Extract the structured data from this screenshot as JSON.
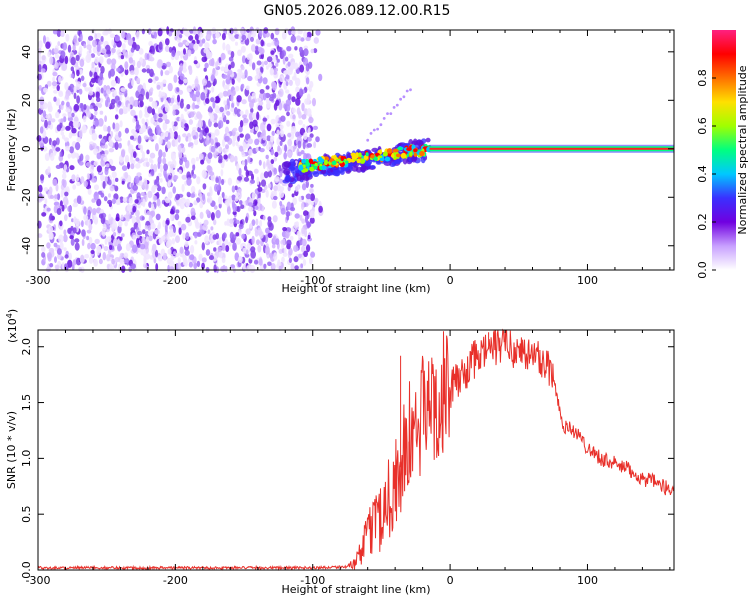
{
  "title": "GN05.2026.089.12.00.R15",
  "chart_data": [
    {
      "type": "heatmap",
      "name": "spectrogram",
      "xlabel": "Height of straight line (km)",
      "ylabel": "Frequency (Hz)",
      "xlim": [
        -300,
        163
      ],
      "ylim": [
        -50,
        49
      ],
      "x_ticks": [
        -300,
        -200,
        -100,
        0,
        100
      ],
      "y_ticks": [
        -40,
        -20,
        0,
        20,
        40
      ],
      "description_regions": {
        "noise_band_km": [
          -300,
          -100
        ],
        "transition_km": [
          -120,
          -15
        ],
        "stable_line_km": [
          -15,
          163
        ],
        "stable_line_freq_hz": 0
      },
      "colorbar": {
        "label": "Normalized spectral amplitude",
        "range": [
          0.0,
          1.0
        ],
        "ticks": [
          0.0,
          0.2,
          0.4,
          0.6,
          0.8
        ],
        "tick_labels": [
          "0.0",
          "0.2",
          "0.4",
          "0.6",
          "0.8"
        ],
        "colors": [
          "#ffffff",
          "#c8a0ff",
          "#7000e0",
          "#3a30ff",
          "#00c8ff",
          "#00ff80",
          "#a0ff00",
          "#ffe000",
          "#ff7000",
          "#ff0000",
          "#ff2080"
        ]
      }
    },
    {
      "type": "line",
      "name": "snr",
      "xlabel": "Height of straight line (km)",
      "ylabel": "SNR (10 * v/v)",
      "ylabel_scale": "(x10",
      "ylabel_scale_exp": "4",
      "ylabel_scale_close": ")",
      "xlim": [
        -300,
        163
      ],
      "ylim": [
        0,
        2.15
      ],
      "x_ticks": [
        -300,
        -200,
        -100,
        0,
        100
      ],
      "y_ticks": [
        0.0,
        0.5,
        1.0,
        1.5,
        2.0
      ],
      "y_tick_labels": [
        "0.0",
        "0.5",
        "1.0",
        "1.5",
        "2.0"
      ],
      "color": "#e8302a",
      "series": [
        {
          "name": "SNR",
          "x": [
            -300,
            -200,
            -100,
            -75,
            -70,
            -65,
            -60,
            -55,
            -50,
            -45,
            -40,
            -35,
            -32,
            -30,
            -25,
            -20,
            -15,
            -10,
            -5,
            0,
            5,
            10,
            15,
            20,
            25,
            30,
            35,
            40,
            45,
            50,
            55,
            60,
            65,
            70,
            75,
            78,
            82,
            90,
            100,
            110,
            120,
            130,
            140,
            150,
            163
          ],
          "values": [
            0.02,
            0.02,
            0.02,
            0.03,
            0.05,
            0.15,
            0.3,
            0.45,
            0.5,
            0.65,
            0.8,
            0.95,
            1.05,
            1.15,
            1.25,
            1.4,
            1.5,
            1.5,
            1.6,
            1.6,
            1.7,
            1.75,
            1.85,
            1.9,
            1.95,
            2.0,
            2.0,
            2.05,
            2.0,
            1.95,
            1.95,
            1.9,
            1.9,
            1.85,
            1.75,
            1.55,
            1.3,
            1.25,
            1.1,
            1.0,
            0.95,
            0.9,
            0.82,
            0.78,
            0.7
          ]
        }
      ],
      "spikes": [
        {
          "x": -36,
          "value": 1.92
        },
        {
          "x": -30,
          "value": 0.85
        },
        {
          "x": 28,
          "value": 2.13
        },
        {
          "x": 40,
          "value": 2.15
        }
      ]
    }
  ]
}
